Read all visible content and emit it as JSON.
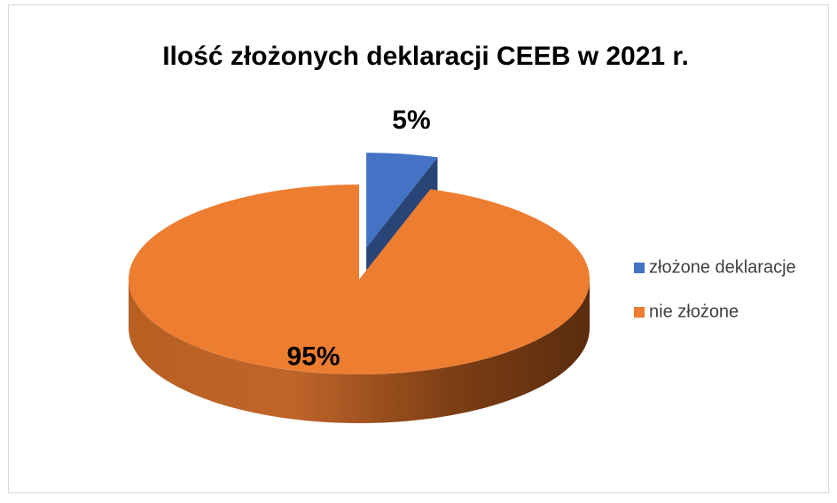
{
  "chart_data": {
    "type": "pie",
    "title": "Ilość złożonych deklaracji CEEB w 2021 r.",
    "categories": [
      "złożone deklaracje",
      "nie złożone"
    ],
    "values": [
      5,
      95
    ],
    "value_labels": [
      "5%",
      "95%"
    ],
    "colors": [
      "#4472c4",
      "#ed7d31"
    ],
    "legend": "right"
  }
}
